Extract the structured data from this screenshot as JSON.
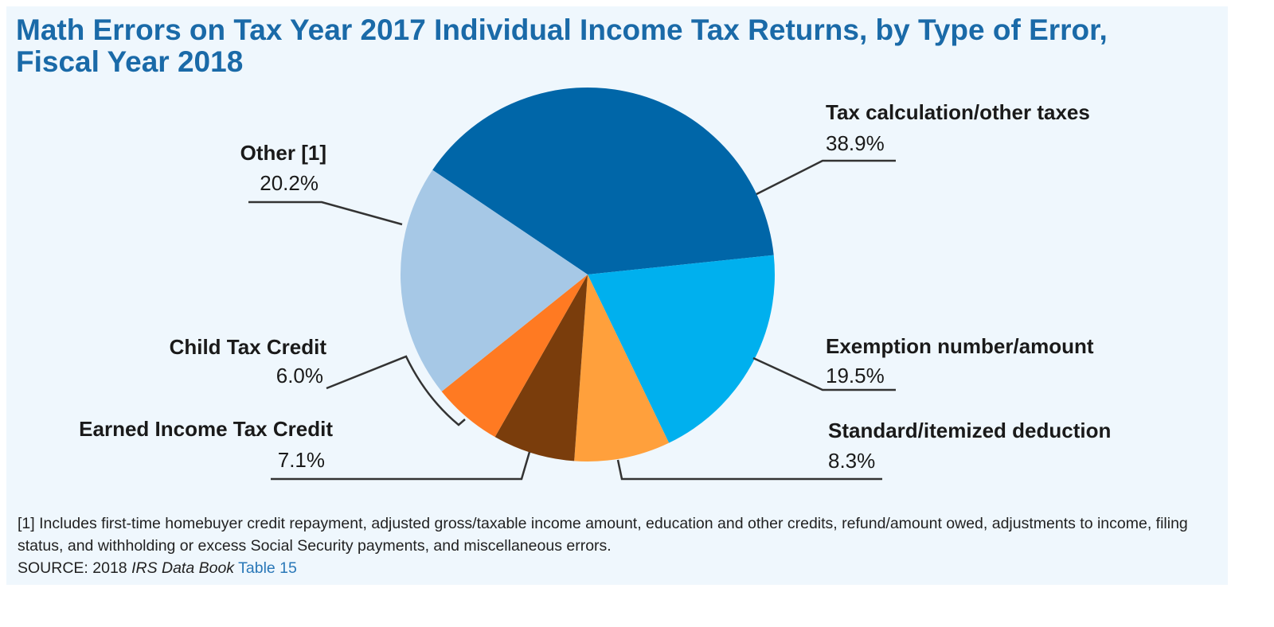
{
  "chart_data": {
    "type": "pie",
    "title": "Math Errors on Tax Year 2017 Individual Income Tax Returns, by Type of Error, Fiscal Year 2018",
    "unit": "%",
    "slices": [
      {
        "label": "Tax calculation/other taxes",
        "value": 38.9,
        "display": "38.9%",
        "color": "#0066a8"
      },
      {
        "label": "Exemption number/amount",
        "value": 19.5,
        "display": "19.5%",
        "color": "#00b0ee"
      },
      {
        "label": "Standard/itemized deduction",
        "value": 8.3,
        "display": "8.3%",
        "color": "#ffa03c"
      },
      {
        "label": "Earned Income Tax Credit",
        "value": 7.1,
        "display": "7.1%",
        "color": "#7a3d0c"
      },
      {
        "label": "Child Tax Credit",
        "value": 6.0,
        "display": "6.0%",
        "color": "#ff7a22"
      },
      {
        "label": "Other [1]",
        "value": 20.2,
        "display": "20.2%",
        "color": "#a6c8e6"
      }
    ]
  },
  "footnote": "[1] Includes first-time homebuyer credit repayment, adjusted gross/taxable income amount, education and other credits, refund/amount owed, adjustments to income, filing status, and withholding or excess Social Security payments, and miscellaneous errors.",
  "source": {
    "prefix": "SOURCE: 2018 ",
    "publication": "IRS Data Book",
    "link": "Table 15"
  }
}
